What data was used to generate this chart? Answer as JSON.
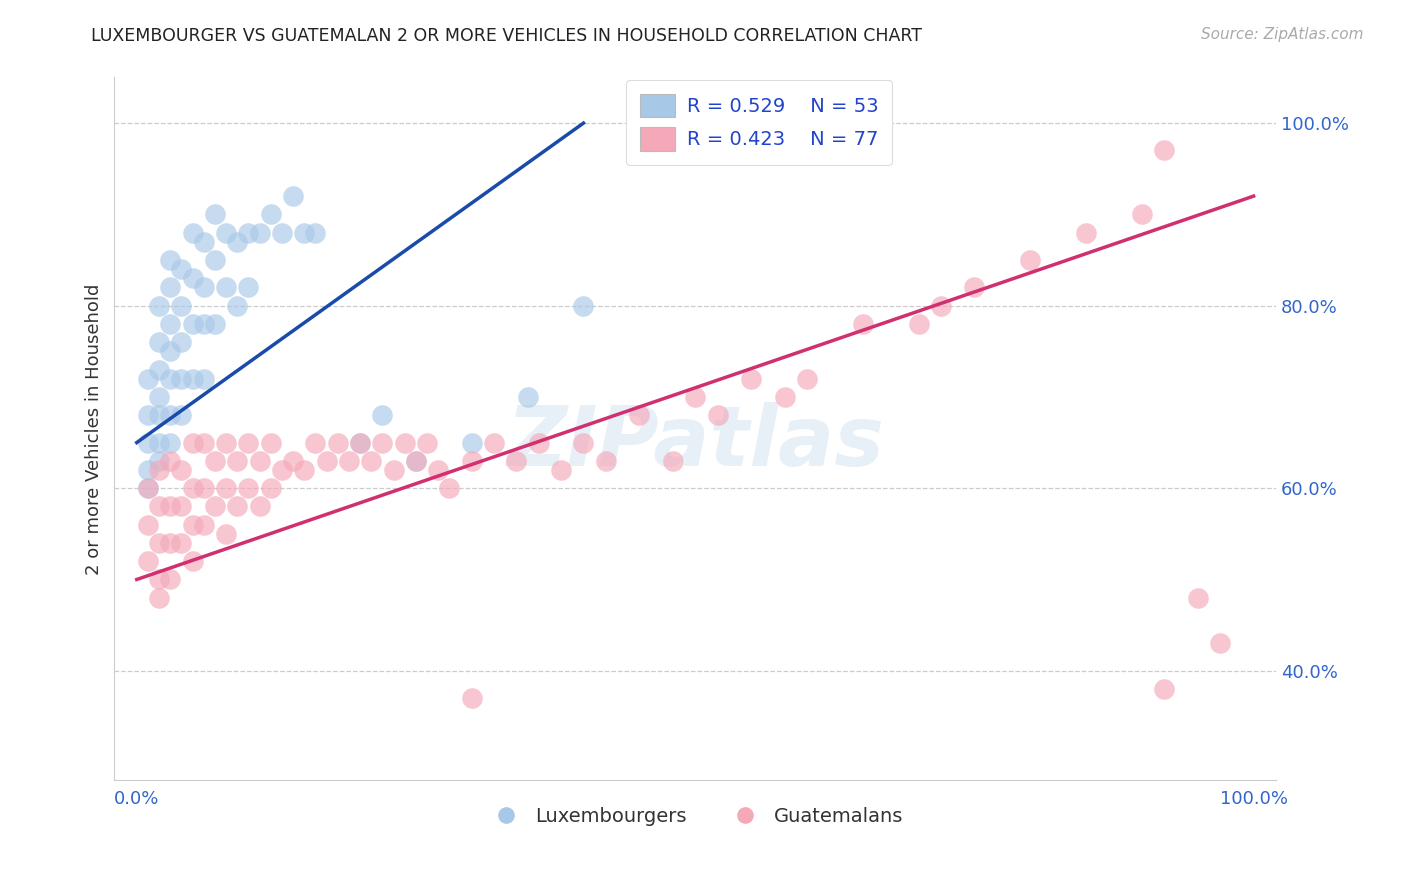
{
  "title": "LUXEMBOURGER VS GUATEMALAN 2 OR MORE VEHICLES IN HOUSEHOLD CORRELATION CHART",
  "source_text": "Source: ZipAtlas.com",
  "ylabel": "2 or more Vehicles in Household",
  "watermark": "ZIPatlas",
  "legend_r_blue": "R = 0.529",
  "legend_n_blue": "N = 53",
  "legend_r_pink": "R = 0.423",
  "legend_n_pink": "N = 77",
  "legend_label_blue": "Luxembourgers",
  "legend_label_pink": "Guatemalans",
  "blue_color": "#a8c8e8",
  "pink_color": "#f4a8b8",
  "trendline_blue": "#1a4aaa",
  "trendline_pink": "#d03070",
  "blue_scatter_x": [
    0.01,
    0.01,
    0.01,
    0.01,
    0.01,
    0.02,
    0.02,
    0.02,
    0.02,
    0.02,
    0.02,
    0.02,
    0.03,
    0.03,
    0.03,
    0.03,
    0.03,
    0.03,
    0.03,
    0.04,
    0.04,
    0.04,
    0.04,
    0.04,
    0.05,
    0.05,
    0.05,
    0.05,
    0.06,
    0.06,
    0.06,
    0.06,
    0.07,
    0.07,
    0.07,
    0.08,
    0.08,
    0.09,
    0.09,
    0.1,
    0.1,
    0.11,
    0.12,
    0.13,
    0.14,
    0.15,
    0.16,
    0.2,
    0.22,
    0.25,
    0.3,
    0.35,
    0.4
  ],
  "blue_scatter_y": [
    0.72,
    0.68,
    0.65,
    0.62,
    0.6,
    0.8,
    0.76,
    0.73,
    0.7,
    0.68,
    0.65,
    0.63,
    0.85,
    0.82,
    0.78,
    0.75,
    0.72,
    0.68,
    0.65,
    0.84,
    0.8,
    0.76,
    0.72,
    0.68,
    0.88,
    0.83,
    0.78,
    0.72,
    0.87,
    0.82,
    0.78,
    0.72,
    0.9,
    0.85,
    0.78,
    0.88,
    0.82,
    0.87,
    0.8,
    0.88,
    0.82,
    0.88,
    0.9,
    0.88,
    0.92,
    0.88,
    0.88,
    0.65,
    0.68,
    0.63,
    0.65,
    0.7,
    0.8
  ],
  "blue_trendline_x0": 0.0,
  "blue_trendline_y0": 0.65,
  "blue_trendline_x1": 0.4,
  "blue_trendline_y1": 1.0,
  "pink_scatter_x": [
    0.01,
    0.01,
    0.01,
    0.02,
    0.02,
    0.02,
    0.02,
    0.02,
    0.03,
    0.03,
    0.03,
    0.03,
    0.04,
    0.04,
    0.04,
    0.05,
    0.05,
    0.05,
    0.05,
    0.06,
    0.06,
    0.06,
    0.07,
    0.07,
    0.08,
    0.08,
    0.08,
    0.09,
    0.09,
    0.1,
    0.1,
    0.11,
    0.11,
    0.12,
    0.12,
    0.13,
    0.14,
    0.15,
    0.16,
    0.17,
    0.18,
    0.19,
    0.2,
    0.21,
    0.22,
    0.23,
    0.24,
    0.25,
    0.26,
    0.27,
    0.28,
    0.3,
    0.32,
    0.34,
    0.36,
    0.38,
    0.4,
    0.42,
    0.45,
    0.48,
    0.5,
    0.52,
    0.55,
    0.58,
    0.6,
    0.65,
    0.7,
    0.72,
    0.75,
    0.8,
    0.85,
    0.9,
    0.92,
    0.95,
    0.97,
    0.92,
    0.3
  ],
  "pink_scatter_y": [
    0.6,
    0.56,
    0.52,
    0.62,
    0.58,
    0.54,
    0.5,
    0.48,
    0.63,
    0.58,
    0.54,
    0.5,
    0.62,
    0.58,
    0.54,
    0.65,
    0.6,
    0.56,
    0.52,
    0.65,
    0.6,
    0.56,
    0.63,
    0.58,
    0.65,
    0.6,
    0.55,
    0.63,
    0.58,
    0.65,
    0.6,
    0.63,
    0.58,
    0.65,
    0.6,
    0.62,
    0.63,
    0.62,
    0.65,
    0.63,
    0.65,
    0.63,
    0.65,
    0.63,
    0.65,
    0.62,
    0.65,
    0.63,
    0.65,
    0.62,
    0.6,
    0.63,
    0.65,
    0.63,
    0.65,
    0.62,
    0.65,
    0.63,
    0.68,
    0.63,
    0.7,
    0.68,
    0.72,
    0.7,
    0.72,
    0.78,
    0.78,
    0.8,
    0.82,
    0.85,
    0.88,
    0.9,
    0.97,
    0.48,
    0.43,
    0.38,
    0.37
  ],
  "pink_trendline_x0": 0.0,
  "pink_trendline_y0": 0.5,
  "pink_trendline_x1": 1.0,
  "pink_trendline_y1": 0.92,
  "ytick_values": [
    0.4,
    0.6,
    0.8,
    1.0
  ],
  "ytick_labels": [
    "40.0%",
    "60.0%",
    "80.0%",
    "100.0%"
  ],
  "xtick_values": [
    0.0,
    1.0
  ],
  "xtick_labels": [
    "0.0%",
    "100.0%"
  ],
  "ylim_min": 0.28,
  "ylim_max": 1.05,
  "xlim_min": -0.02,
  "xlim_max": 1.02
}
